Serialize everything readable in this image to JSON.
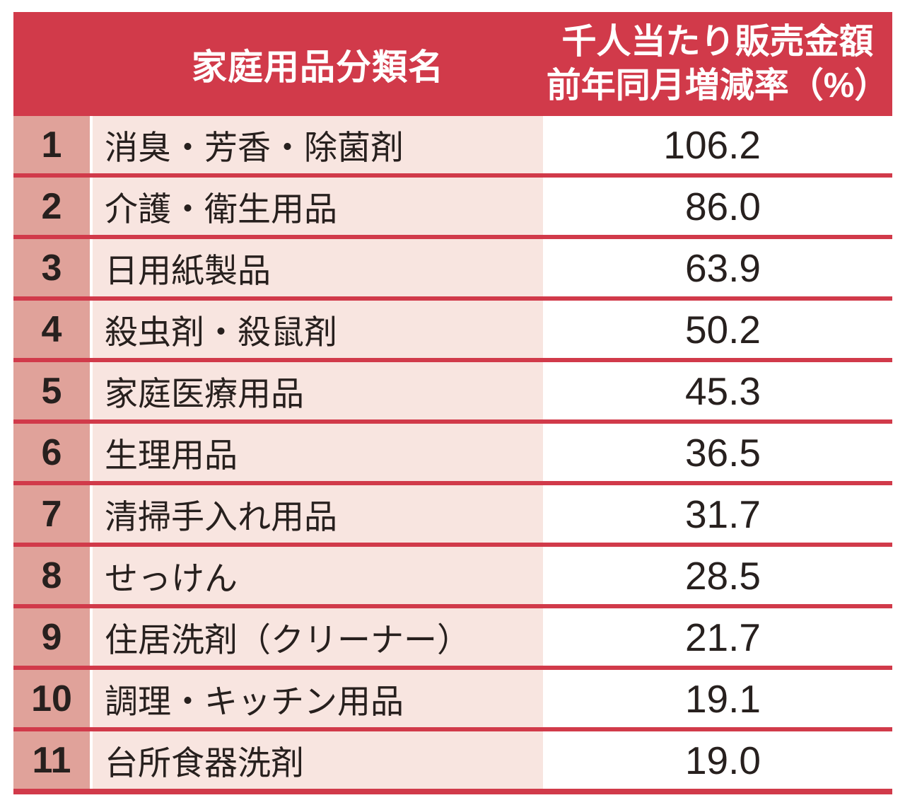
{
  "colors": {
    "accent_red": "#d13a4a",
    "rank_cell_pink": "#e0a29a",
    "category_cell_pink": "#f8e5e0",
    "text_dark": "#27201e",
    "header_text": "#ffffff"
  },
  "table": {
    "header": {
      "category_label": "家庭用品分類名",
      "value_label_line1": "千人当たり販売金額",
      "value_label_line2": "前年同月増減率（%）"
    },
    "rows": [
      {
        "rank": "1",
        "category": "消臭・芳香・除菌剤",
        "value": "106.2"
      },
      {
        "rank": "2",
        "category": "介護・衛生用品",
        "value": "86.0"
      },
      {
        "rank": "3",
        "category": "日用紙製品",
        "value": "63.9"
      },
      {
        "rank": "4",
        "category": "殺虫剤・殺鼠剤",
        "value": "50.2"
      },
      {
        "rank": "5",
        "category": "家庭医療用品",
        "value": "45.3"
      },
      {
        "rank": "6",
        "category": "生理用品",
        "value": "36.5"
      },
      {
        "rank": "7",
        "category": "清掃手入れ用品",
        "value": "31.7"
      },
      {
        "rank": "8",
        "category": "せっけん",
        "value": "28.5"
      },
      {
        "rank": "9",
        "category": "住居洗剤（クリーナー）",
        "value": "21.7"
      },
      {
        "rank": "10",
        "category": "調理・キッチン用品",
        "value": "19.1"
      },
      {
        "rank": "11",
        "category": "台所食器洗剤",
        "value": "19.0"
      }
    ]
  },
  "chart_data": {
    "type": "table",
    "title": "千人当たり販売金額 前年同月増減率ランキング",
    "columns": [
      "家庭用品分類名",
      "千人当たり販売金額 前年同月増減率（%）"
    ],
    "ranks": [
      1,
      2,
      3,
      4,
      5,
      6,
      7,
      8,
      9,
      10,
      11
    ],
    "categories": [
      "消臭・芳香・除菌剤",
      "介護・衛生用品",
      "日用紙製品",
      "殺虫剤・殺鼠剤",
      "家庭医療用品",
      "生理用品",
      "清掃手入れ用品",
      "せっけん",
      "住居洗剤（クリーナー）",
      "調理・キッチン用品",
      "台所食器洗剤"
    ],
    "values": [
      106.2,
      86.0,
      63.9,
      50.2,
      45.3,
      36.5,
      31.7,
      28.5,
      21.7,
      19.1,
      19.0
    ]
  }
}
